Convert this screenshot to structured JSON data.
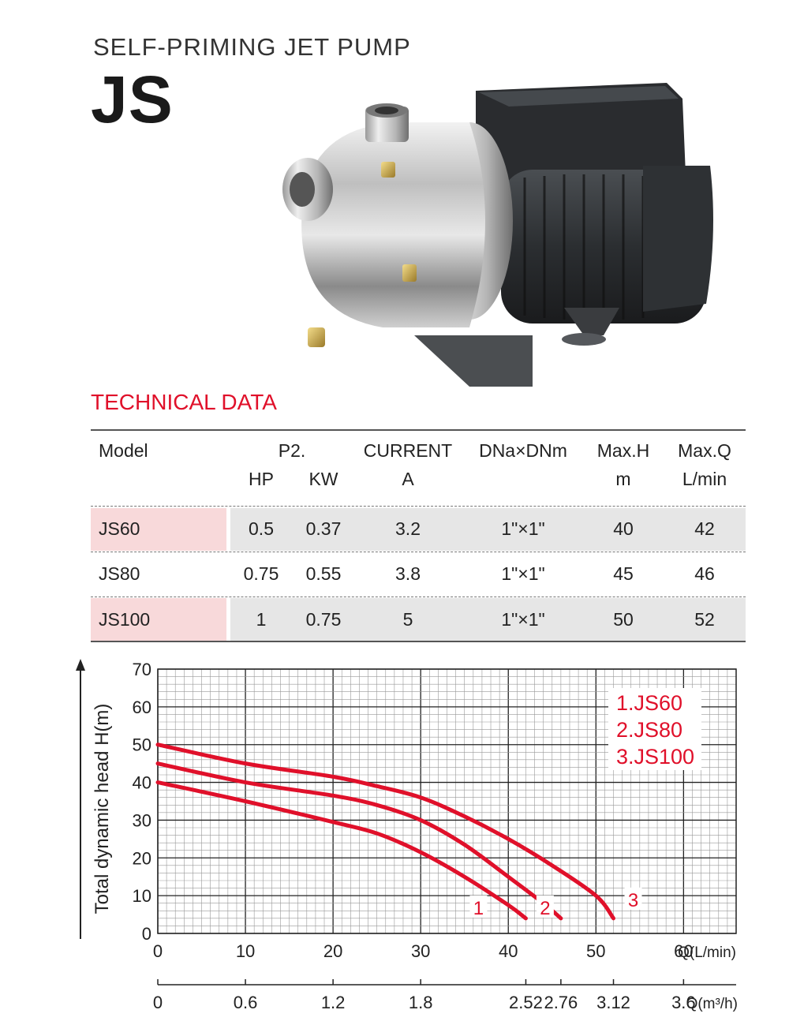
{
  "header": {
    "subtitle": "SELF-PRIMING JET PUMP",
    "model": "JS"
  },
  "section_title": "TECHNICAL DATA",
  "table": {
    "headers": {
      "model": "Model",
      "p2": "P2.",
      "hp": "HP",
      "kw": "KW",
      "current": "CURRENT",
      "current_unit": "A",
      "dn": "DNa×DNm",
      "maxh": "Max.H",
      "maxh_unit": "m",
      "maxq": "Max.Q",
      "maxq_unit": "L/min"
    },
    "rows": [
      {
        "model": "JS60",
        "hp": "0.5",
        "kw": "0.37",
        "current": "3.2",
        "dn": "1\"×1\"",
        "maxh": "40",
        "maxq": "42"
      },
      {
        "model": "JS80",
        "hp": "0.75",
        "kw": "0.55",
        "current": "3.8",
        "dn": "1\"×1\"",
        "maxh": "45",
        "maxq": "46"
      },
      {
        "model": "JS100",
        "hp": "1",
        "kw": "0.75",
        "current": "5",
        "dn": "1\"×1\"",
        "maxh": "50",
        "maxq": "52"
      }
    ]
  },
  "chart_data": {
    "type": "line",
    "ylabel": "Total dynamic head H(m)",
    "xlabel": "Q(L/min)",
    "x2label": "Q(m³/h)",
    "ylim": [
      0,
      70
    ],
    "xlim": [
      0,
      66
    ],
    "y_ticks": [
      "0",
      "10",
      "20",
      "30",
      "40",
      "50",
      "60",
      "70"
    ],
    "x_ticks": [
      "0",
      "10",
      "20",
      "30",
      "40",
      "50",
      "60"
    ],
    "x2_ticks": [
      {
        "q": 0,
        "label": "0"
      },
      {
        "q": 10,
        "label": "0.6"
      },
      {
        "q": 20,
        "label": "1.2"
      },
      {
        "q": 30,
        "label": "1.8"
      },
      {
        "q": 42,
        "label": "2.52"
      },
      {
        "q": 46,
        "label": "2.76"
      },
      {
        "q": 52,
        "label": "3.12"
      },
      {
        "q": 60,
        "label": "3.6"
      }
    ],
    "grid": true,
    "legend": [
      "1.JS60",
      "2.JS80",
      "3.JS100"
    ],
    "curve_color": "#e0102a",
    "series": [
      {
        "name": "1.JS60",
        "marker": "1",
        "x": [
          0,
          10,
          20,
          25,
          30,
          35,
          40,
          42
        ],
        "y": [
          40,
          35,
          29.5,
          26.5,
          21.5,
          15,
          7.5,
          4
        ]
      },
      {
        "name": "2.JS80",
        "marker": "2",
        "x": [
          0,
          10,
          20,
          25,
          30,
          35,
          40,
          44,
          46
        ],
        "y": [
          45,
          40,
          36.5,
          34,
          30,
          23.5,
          15,
          8,
          4
        ]
      },
      {
        "name": "3.JS100",
        "marker": "3",
        "x": [
          0,
          10,
          20,
          25,
          30,
          35,
          40,
          45,
          50,
          52
        ],
        "y": [
          50,
          45,
          41.5,
          39,
          36,
          31,
          25,
          18,
          10,
          4
        ]
      }
    ]
  }
}
